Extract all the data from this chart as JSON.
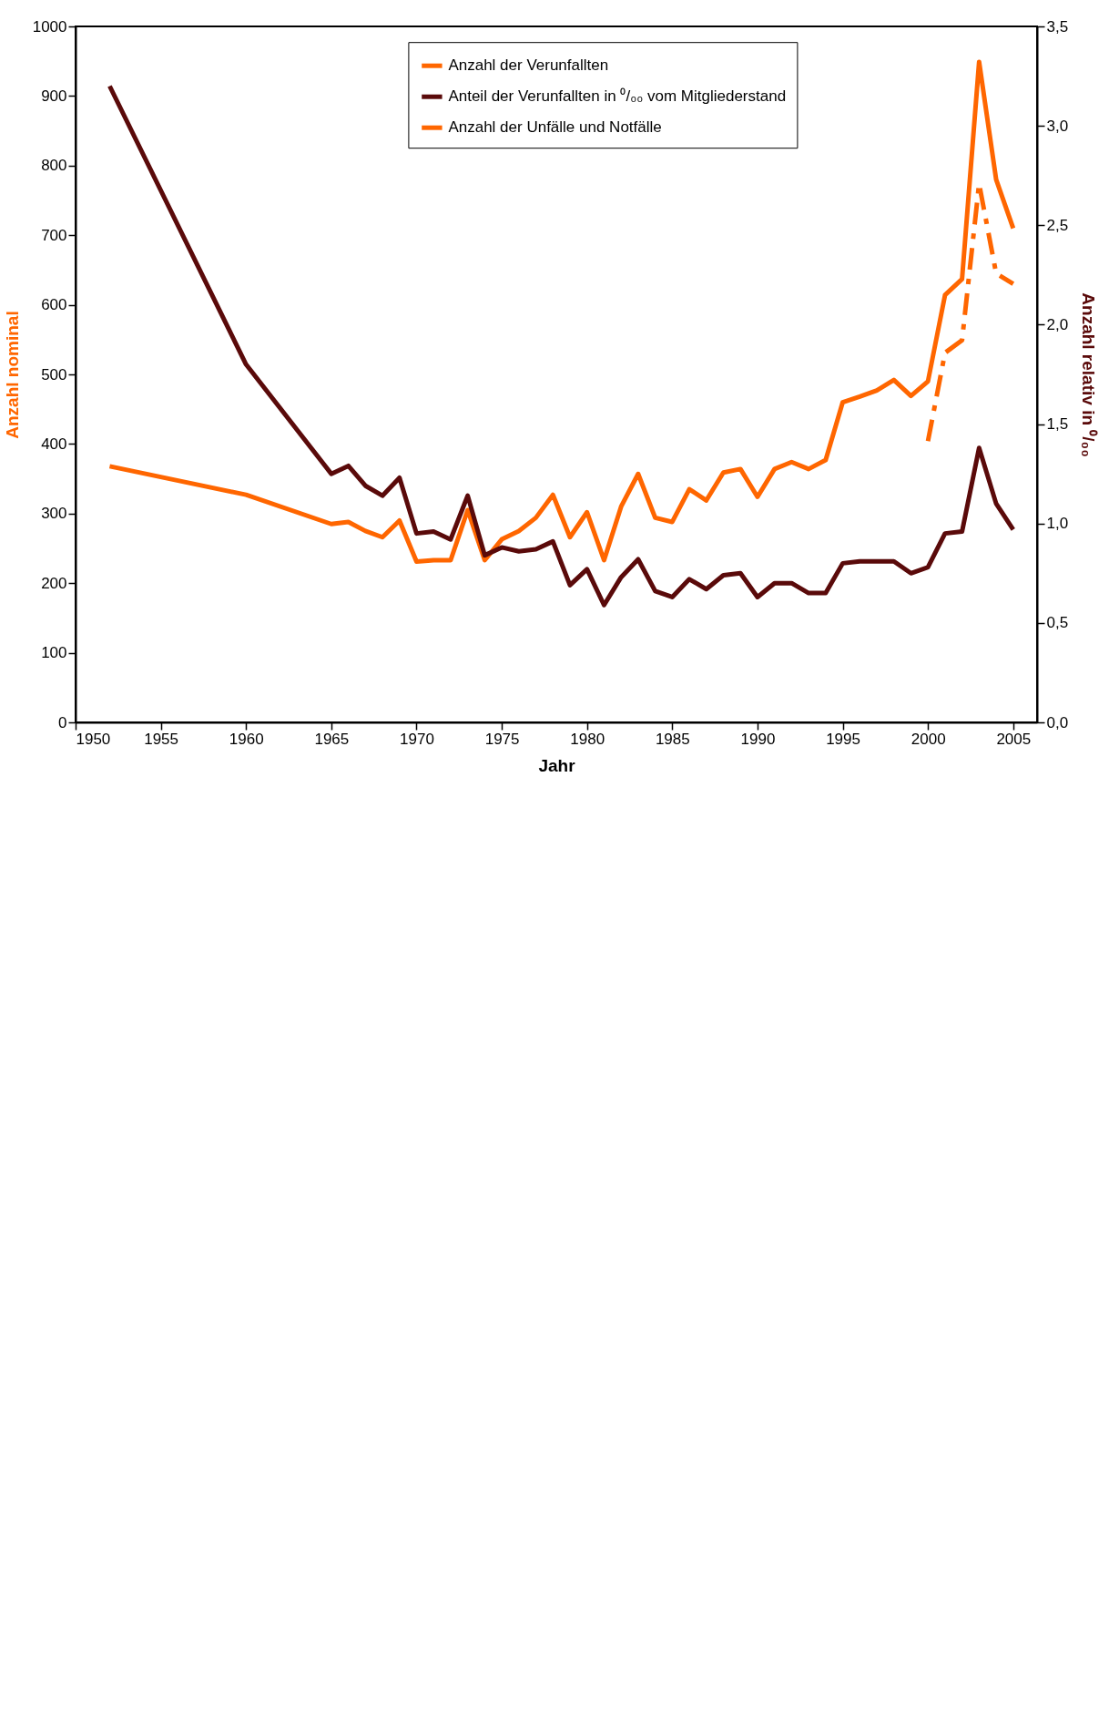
{
  "chart_data": {
    "type": "line",
    "xlabel": "Jahr",
    "ylabel": "Anzahl nominal",
    "y2label": "Anzahl relativ in ⁰/₀₀",
    "x": [
      1952,
      1960,
      1965,
      1966,
      1967,
      1968,
      1969,
      1970,
      1971,
      1972,
      1973,
      1974,
      1975,
      1976,
      1977,
      1978,
      1979,
      1980,
      1981,
      1982,
      1983,
      1984,
      1985,
      1986,
      1987,
      1988,
      1989,
      1990,
      1991,
      1992,
      1993,
      1994,
      1995,
      1996,
      1997,
      1998,
      1999,
      2000,
      2001,
      2002,
      2003,
      2004,
      2005
    ],
    "xlim": [
      1950,
      2006.4
    ],
    "xticks": [
      1950,
      1955,
      1960,
      1965,
      1970,
      1975,
      1980,
      1985,
      1990,
      1995,
      2000,
      2005
    ],
    "ylim": [
      0,
      1000
    ],
    "yticks": [
      0,
      100,
      200,
      300,
      400,
      500,
      600,
      700,
      800,
      900,
      1000
    ],
    "y2lim": [
      0,
      3.5
    ],
    "y2ticks": [
      {
        "value": 0,
        "label": "0,0"
      },
      {
        "value": 0.5,
        "label": "0,5"
      },
      {
        "value": 1,
        "label": "1,0"
      },
      {
        "value": 1.5,
        "label": "1,5"
      },
      {
        "value": 2,
        "label": "2,0"
      },
      {
        "value": 2.5,
        "label": "2,5"
      },
      {
        "value": 3,
        "label": "3,0"
      },
      {
        "value": 3.5,
        "label": "3,5"
      }
    ],
    "legend": "top left",
    "series": [
      {
        "name": "Anzahl der Verunfallten",
        "color": "#ff6600",
        "line_style": "solid",
        "values": [
          368,
          327,
          285,
          288,
          275,
          266,
          290,
          231,
          233,
          233,
          305,
          233,
          263,
          275,
          294,
          327,
          266,
          302,
          233,
          310,
          357,
          294,
          288,
          335,
          319,
          359,
          364,
          324,
          364,
          374,
          364,
          377,
          460,
          468,
          477,
          492,
          469,
          490,
          614,
          637,
          949,
          780,
          710
        ]
      },
      {
        "name": "Anteil der Verunfallten in ⁰/₀₀ vom Mitgliederstand",
        "color": "#5a0a0a",
        "line_style": "solid",
        "axis": "y2",
        "values": [
          3.2,
          1.8,
          1.25,
          1.29,
          1.19,
          1.14,
          1.23,
          0.95,
          0.96,
          0.92,
          1.14,
          0.84,
          0.88,
          0.86,
          0.87,
          0.91,
          0.69,
          0.77,
          0.59,
          0.73,
          0.82,
          0.66,
          0.63,
          0.72,
          0.67,
          0.74,
          0.75,
          0.63,
          0.7,
          0.7,
          0.65,
          0.65,
          0.8,
          0.81,
          0.81,
          0.81,
          0.75,
          0.78,
          0.95,
          0.96,
          1.38,
          1.1,
          0.97
        ]
      },
      {
        "name": "Anzahl der Unfälle und Notfälle",
        "color": "#ff6600",
        "line_style": "dashed",
        "x": [
          2000,
          2001,
          2002,
          2003,
          2004,
          2005
        ],
        "values": [
          404,
          531,
          549,
          774,
          645,
          630
        ]
      }
    ]
  }
}
